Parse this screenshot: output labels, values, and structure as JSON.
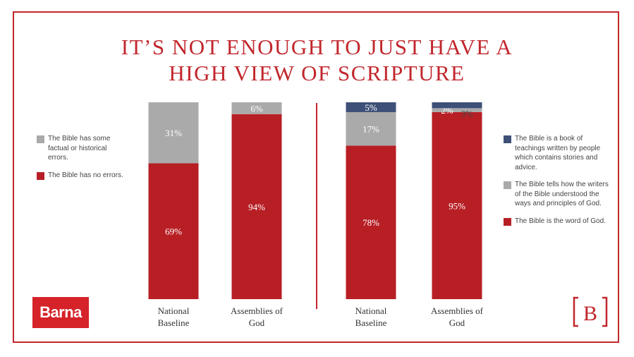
{
  "title_line1": "IT’S NOT ENOUGH TO JUST HAVE A",
  "title_line2": "HIGH VIEW OF SCRIPTURE",
  "colors": {
    "accent": "#c1272d",
    "red": "#b71f25",
    "gray": "#aaaaaa",
    "navy": "#3e5078"
  },
  "logos": {
    "left": "Barna",
    "right": "B"
  },
  "chart_data": [
    {
      "type": "bar",
      "stacked": true,
      "categories": [
        "National Baseline",
        "Assemblies of God"
      ],
      "category_lines": [
        [
          "National",
          "Baseline"
        ],
        [
          "Assemblies of",
          "God"
        ]
      ],
      "series": [
        {
          "name": "The Bible has no errors.",
          "values": [
            69,
            94
          ],
          "labels": [
            "69%",
            "94%"
          ],
          "color": "#b71f25"
        },
        {
          "name": "The Bible has some factual or historical errors.",
          "values": [
            31,
            6
          ],
          "labels": [
            "31%",
            "6%"
          ],
          "color": "#aaaaaa"
        }
      ],
      "legend_order": [
        1,
        0
      ],
      "ylim": [
        0,
        100
      ]
    },
    {
      "type": "bar",
      "stacked": true,
      "categories": [
        "National Baseline",
        "Assemblies of God"
      ],
      "category_lines": [
        [
          "National",
          "Baseline"
        ],
        [
          "Assemblies of",
          "God"
        ]
      ],
      "series": [
        {
          "name": "The Bible is the word of God.",
          "values": [
            78,
            95
          ],
          "labels": [
            "78%",
            "95%"
          ],
          "color": "#b71f25"
        },
        {
          "name": "The Bible tells how the writers of the Bible understood the ways and principles of God.",
          "values": [
            17,
            2
          ],
          "labels": [
            "17%",
            "2%"
          ],
          "color": "#aaaaaa"
        },
        {
          "name": "The Bible is a book of teachings written by people which contains stories and advice.",
          "values": [
            5,
            3
          ],
          "labels": [
            "5%",
            "3%"
          ],
          "color": "#3e5078"
        }
      ],
      "legend_order": [
        2,
        1,
        0
      ],
      "ylim": [
        0,
        100
      ]
    }
  ]
}
